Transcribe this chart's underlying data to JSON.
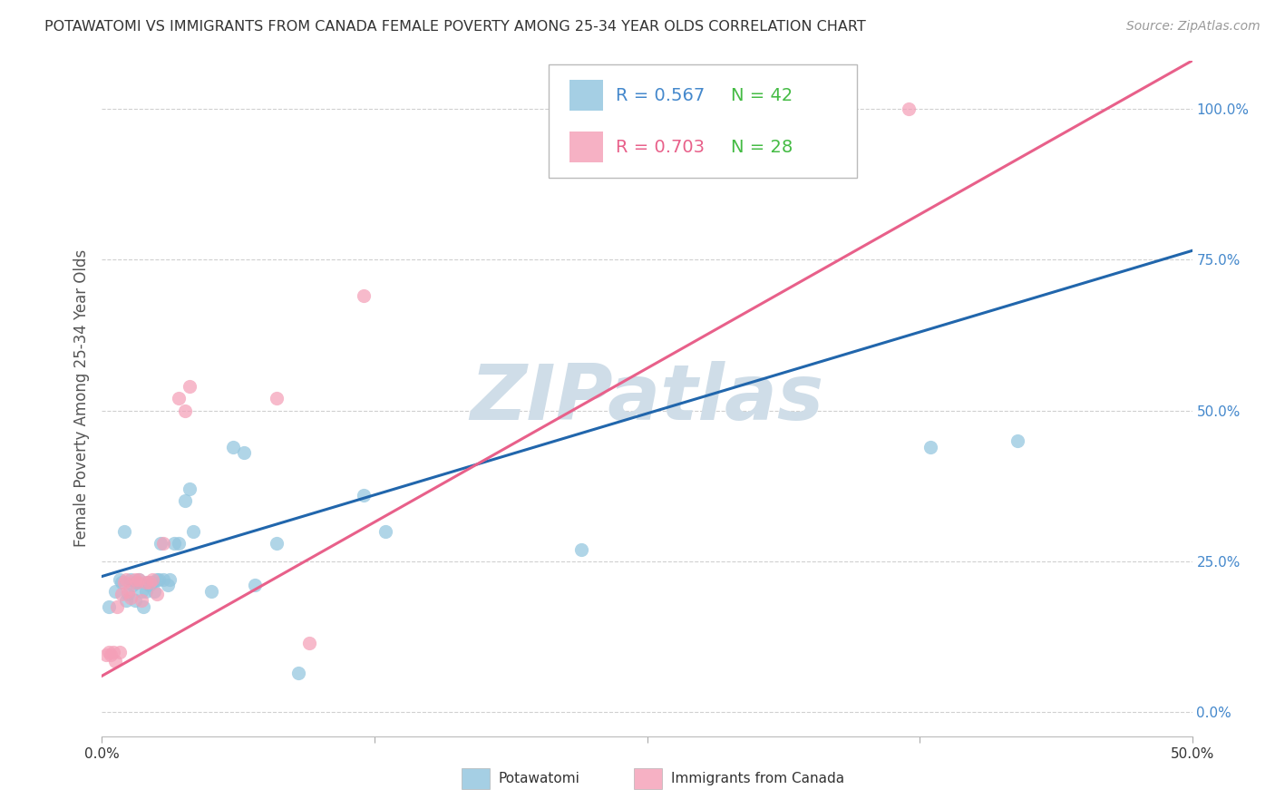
{
  "title": "POTAWATOMI VS IMMIGRANTS FROM CANADA FEMALE POVERTY AMONG 25-34 YEAR OLDS CORRELATION CHART",
  "source": "Source: ZipAtlas.com",
  "ylabel": "Female Poverty Among 25-34 Year Olds",
  "xlim": [
    0.0,
    0.5
  ],
  "ylim": [
    -0.04,
    1.08
  ],
  "xticks": [
    0.0,
    0.125,
    0.25,
    0.375,
    0.5
  ],
  "xtick_labels": [
    "0.0%",
    "",
    "",
    "",
    "50.0%"
  ],
  "yticks_right": [
    0.0,
    0.25,
    0.5,
    0.75,
    1.0
  ],
  "ytick_labels_right": [
    "0.0%",
    "25.0%",
    "50.0%",
    "75.0%",
    "100.0%"
  ],
  "blue_label": "Potawatomi",
  "pink_label": "Immigrants from Canada",
  "blue_R": "0.567",
  "blue_N": "42",
  "pink_R": "0.703",
  "pink_N": "28",
  "blue_color": "#92c5de",
  "pink_color": "#f4a0b8",
  "blue_line_color": "#2166ac",
  "pink_line_color": "#e8608a",
  "watermark": "ZIPatlas",
  "watermark_color": "#cfdde8",
  "background_color": "#ffffff",
  "grid_color": "#d0d0d0",
  "blue_x": [
    0.003,
    0.006,
    0.008,
    0.009,
    0.01,
    0.011,
    0.012,
    0.013,
    0.014,
    0.015,
    0.015,
    0.016,
    0.017,
    0.018,
    0.019,
    0.02,
    0.021,
    0.022,
    0.023,
    0.024,
    0.025,
    0.026,
    0.027,
    0.028,
    0.03,
    0.031,
    0.033,
    0.035,
    0.038,
    0.04,
    0.042,
    0.05,
    0.06,
    0.065,
    0.07,
    0.08,
    0.09,
    0.12,
    0.13,
    0.22,
    0.38,
    0.42
  ],
  "blue_y": [
    0.175,
    0.2,
    0.22,
    0.215,
    0.3,
    0.185,
    0.195,
    0.22,
    0.21,
    0.185,
    0.215,
    0.215,
    0.22,
    0.2,
    0.175,
    0.2,
    0.215,
    0.21,
    0.215,
    0.2,
    0.22,
    0.22,
    0.28,
    0.22,
    0.21,
    0.22,
    0.28,
    0.28,
    0.35,
    0.37,
    0.3,
    0.2,
    0.44,
    0.43,
    0.21,
    0.28,
    0.065,
    0.36,
    0.3,
    0.27,
    0.44,
    0.45
  ],
  "pink_x": [
    0.002,
    0.003,
    0.004,
    0.005,
    0.006,
    0.007,
    0.008,
    0.009,
    0.01,
    0.011,
    0.012,
    0.013,
    0.015,
    0.016,
    0.017,
    0.018,
    0.02,
    0.022,
    0.023,
    0.025,
    0.028,
    0.035,
    0.038,
    0.04,
    0.08,
    0.095,
    0.12,
    0.37
  ],
  "pink_y": [
    0.095,
    0.1,
    0.095,
    0.1,
    0.085,
    0.175,
    0.1,
    0.195,
    0.215,
    0.22,
    0.2,
    0.19,
    0.22,
    0.215,
    0.22,
    0.185,
    0.215,
    0.215,
    0.22,
    0.195,
    0.28,
    0.52,
    0.5,
    0.54,
    0.52,
    0.115,
    0.69,
    1.0
  ],
  "blue_line_x0": 0.0,
  "blue_line_y0": 0.225,
  "blue_line_x1": 0.5,
  "blue_line_y1": 0.765,
  "pink_line_x0": 0.0,
  "pink_line_y0": 0.06,
  "pink_line_x1": 0.5,
  "pink_line_y1": 1.08,
  "legend_R_blue_color": "#4488cc",
  "legend_N_blue_color": "#44bb44",
  "legend_R_pink_color": "#e8608a",
  "legend_N_pink_color": "#44bb44",
  "title_fontsize": 11.5,
  "source_fontsize": 10,
  "axis_fontsize": 11,
  "legend_fontsize": 14,
  "scatter_size": 120,
  "scatter_alpha": 0.72
}
